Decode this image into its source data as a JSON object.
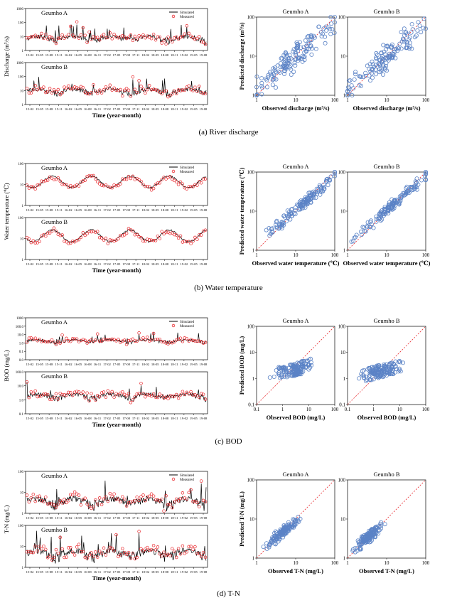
{
  "captions": [
    "(a)  River  discharge",
    "(b)  Water temperature",
    "(c)  BOD",
    "(d)  T-N"
  ],
  "legend": {
    "simulated": "Simulated",
    "measured": "Measured"
  },
  "colors": {
    "simulated": "#000000",
    "measured": "#e8262b",
    "scatter": "#5b83c6",
    "one_to_one": "#e8262b"
  },
  "time_ticks": [
    "15-02",
    "15-05",
    "15-08",
    "15-11",
    "16-02",
    "16-05",
    "16-08",
    "16-11",
    "17-02",
    "17-05",
    "17-08",
    "17-11",
    "18-02",
    "18-05",
    "18-08",
    "18-11",
    "19-02",
    "19-05",
    "19-08"
  ],
  "panels": [
    {
      "caption_index": 0,
      "ts_ylabel": "Discharge (m³/s)",
      "ts_xlabel": "Time (year-month)",
      "ts": [
        {
          "station": "Geumho A",
          "ylog": [
            1,
            1000
          ],
          "yticks": [
            "1",
            "10",
            "100",
            "1000"
          ],
          "base": 8,
          "amp": 12,
          "measured_amp": 10
        },
        {
          "station": "Geumho B",
          "ylog": [
            1,
            1000
          ],
          "yticks": [
            "1",
            "10",
            "100",
            "1000"
          ],
          "base": 10,
          "amp": 25,
          "measured_amp": 20
        }
      ],
      "sc_xlabel": "Observed discharge (m³/s)",
      "sc_ylabel": "Predicted discharge (m³/s)",
      "sc_ticks": [
        "1",
        "10",
        "100"
      ],
      "sc_range": [
        1,
        100
      ],
      "sc": [
        {
          "station": "Geumho A",
          "center": 8,
          "spread": 0.55
        },
        {
          "station": "Geumho B",
          "center": 6,
          "spread": 0.55
        }
      ]
    },
    {
      "caption_index": 1,
      "ts_ylabel": "Water temperature (℃)",
      "ts_xlabel": "Time (year-month)",
      "ts": [
        {
          "station": "Geumho A",
          "ylog": [
            1,
            100
          ],
          "yticks": [
            "1",
            "10",
            "100"
          ],
          "seasonal": true
        },
        {
          "station": "Geumho B",
          "ylog": [
            1,
            100
          ],
          "yticks": [
            "1",
            "10",
            "100"
          ],
          "seasonal": true
        }
      ],
      "sc_xlabel": "Observed water temperature (℃)",
      "sc_ylabel": "Predicted water temperature (℃)",
      "sc_ticks": [
        "1",
        "10",
        "100"
      ],
      "sc_range": [
        1,
        100
      ],
      "sc": [
        {
          "station": "Geumho A",
          "center": 15,
          "spread": 0.45,
          "tight": true
        },
        {
          "station": "Geumho B",
          "center": 15,
          "spread": 0.45,
          "tight": true
        }
      ]
    },
    {
      "caption_index": 2,
      "ts_ylabel": "BOD (mg/L)",
      "ts_xlabel": "Time (year-month)",
      "ts": [
        {
          "station": "Geumho A",
          "ylog": [
            0.01,
            1000
          ],
          "yticks": [
            "0.0",
            "0.1",
            "1.0",
            "10.0",
            "100.0",
            "1000"
          ],
          "base": 1.8,
          "amp": 3,
          "measured_amp": 2.5
        },
        {
          "station": "Geumho B",
          "ylog": [
            0.1,
            100
          ],
          "yticks": [
            "0.1",
            "1.0",
            "10.0",
            "100.0"
          ],
          "base": 2,
          "amp": 2,
          "measured_amp": 2
        }
      ],
      "sc_xlabel": "Observed BOD (mg/L)",
      "sc_ylabel": "Predicted BOD (mg/L)",
      "sc_ticks": [
        "0.1",
        "1",
        "10",
        "100"
      ],
      "sc_range": [
        0.1,
        100
      ],
      "sc": [
        {
          "station": "Geumho A",
          "center": 2.5,
          "spread": 0.35,
          "flat": true
        },
        {
          "station": "Geumho B",
          "center": 2,
          "spread": 0.35,
          "flat": true
        }
      ]
    },
    {
      "caption_index": 3,
      "ts_ylabel": "T-N (mg/L)",
      "ts_xlabel": "Time (year-month)",
      "ts": [
        {
          "station": "Geumho A",
          "ylog": [
            1,
            100
          ],
          "yticks": [
            "1",
            "10",
            "100"
          ],
          "base": 4,
          "amp": 1.5,
          "measured_amp": 2
        },
        {
          "station": "Geumho B",
          "ylog": [
            1,
            100
          ],
          "yticks": [
            "1",
            "10",
            "100"
          ],
          "base": 5,
          "amp": 1.5,
          "measured_amp": 2
        }
      ],
      "sc_xlabel": "Observed T-N (mg/L)",
      "sc_ylabel": "Predicted T-N (mg/L)",
      "sc_ticks": [
        "1",
        "10",
        "100"
      ],
      "sc_range": [
        1,
        100
      ],
      "sc": [
        {
          "station": "Geumho A",
          "center": 4.5,
          "spread": 0.18,
          "tight": true
        },
        {
          "station": "Geumho B",
          "center": 3.5,
          "spread": 0.16,
          "tight": true
        }
      ]
    }
  ],
  "chart_data": [
    {
      "type": "line",
      "title": "Geumho A",
      "xlabel": "Time (year-month)",
      "ylabel": "Discharge (m³/s)",
      "yscale": "log",
      "ylim": [
        1,
        1000
      ],
      "series": [
        {
          "name": "Simulated"
        },
        {
          "name": "Measured"
        }
      ]
    },
    {
      "type": "line",
      "title": "Geumho B",
      "xlabel": "Time (year-month)",
      "ylabel": "Discharge (m³/s)",
      "yscale": "log",
      "ylim": [
        1,
        1000
      ]
    },
    {
      "type": "scatter",
      "title": "Geumho A",
      "xlabel": "Observed discharge (m³/s)",
      "ylabel": "Predicted discharge (m³/s)",
      "xlim": [
        1,
        100
      ],
      "ylim": [
        1,
        100
      ],
      "scale": "log"
    },
    {
      "type": "scatter",
      "title": "Geumho B",
      "xlabel": "Observed discharge (m³/s)",
      "ylabel": "Predicted discharge (m³/s)",
      "xlim": [
        1,
        100
      ],
      "ylim": [
        1,
        100
      ],
      "scale": "log"
    },
    {
      "type": "line",
      "title": "Geumho A",
      "xlabel": "Time (year-month)",
      "ylabel": "Water temperature (℃)",
      "yscale": "log",
      "ylim": [
        1,
        100
      ]
    },
    {
      "type": "line",
      "title": "Geumho B",
      "xlabel": "Time (year-month)",
      "ylabel": "Water temperature (℃)",
      "yscale": "log",
      "ylim": [
        1,
        100
      ]
    },
    {
      "type": "scatter",
      "title": "Geumho A",
      "xlabel": "Observed water temperature (℃)",
      "ylabel": "Predicted water temperature (℃)",
      "xlim": [
        1,
        100
      ],
      "ylim": [
        1,
        100
      ],
      "scale": "log"
    },
    {
      "type": "scatter",
      "title": "Geumho B",
      "xlabel": "Observed water temperature (℃)",
      "ylabel": "Predicted water temperature (℃)",
      "xlim": [
        1,
        100
      ],
      "ylim": [
        1,
        100
      ],
      "scale": "log"
    },
    {
      "type": "line",
      "title": "Geumho A",
      "xlabel": "Time (year-month)",
      "ylabel": "BOD (mg/L)",
      "yscale": "log",
      "ylim": [
        0.01,
        1000
      ]
    },
    {
      "type": "line",
      "title": "Geumho B",
      "xlabel": "Time (year-month)",
      "ylabel": "BOD (mg/L)",
      "yscale": "log",
      "ylim": [
        0.1,
        100
      ]
    },
    {
      "type": "scatter",
      "title": "Geumho A",
      "xlabel": "Observed BOD (mg/L)",
      "ylabel": "Predicted BOD (mg/L)",
      "xlim": [
        0.1,
        100
      ],
      "ylim": [
        0.1,
        100
      ],
      "scale": "log"
    },
    {
      "type": "scatter",
      "title": "Geumho B",
      "xlabel": "Observed BOD (mg/L)",
      "ylabel": "Predicted BOD (mg/L)",
      "xlim": [
        0.1,
        100
      ],
      "ylim": [
        0.1,
        100
      ],
      "scale": "log"
    },
    {
      "type": "line",
      "title": "Geumho A",
      "xlabel": "Time (year-month)",
      "ylabel": "T-N (mg/L)",
      "yscale": "log",
      "ylim": [
        1,
        100
      ]
    },
    {
      "type": "line",
      "title": "Geumho B",
      "xlabel": "Time (year-month)",
      "ylabel": "T-N (mg/L)",
      "yscale": "log",
      "ylim": [
        1,
        100
      ]
    },
    {
      "type": "scatter",
      "title": "Geumho A",
      "xlabel": "Observed T-N (mg/L)",
      "ylabel": "Predicted T-N (mg/L)",
      "xlim": [
        1,
        100
      ],
      "ylim": [
        1,
        100
      ],
      "scale": "log"
    },
    {
      "type": "scatter",
      "title": "Geumho B",
      "xlabel": "Observed T-N (mg/L)",
      "ylabel": "Predicted T-N (mg/L)",
      "xlim": [
        1,
        100
      ],
      "ylim": [
        1,
        100
      ],
      "scale": "log"
    }
  ]
}
